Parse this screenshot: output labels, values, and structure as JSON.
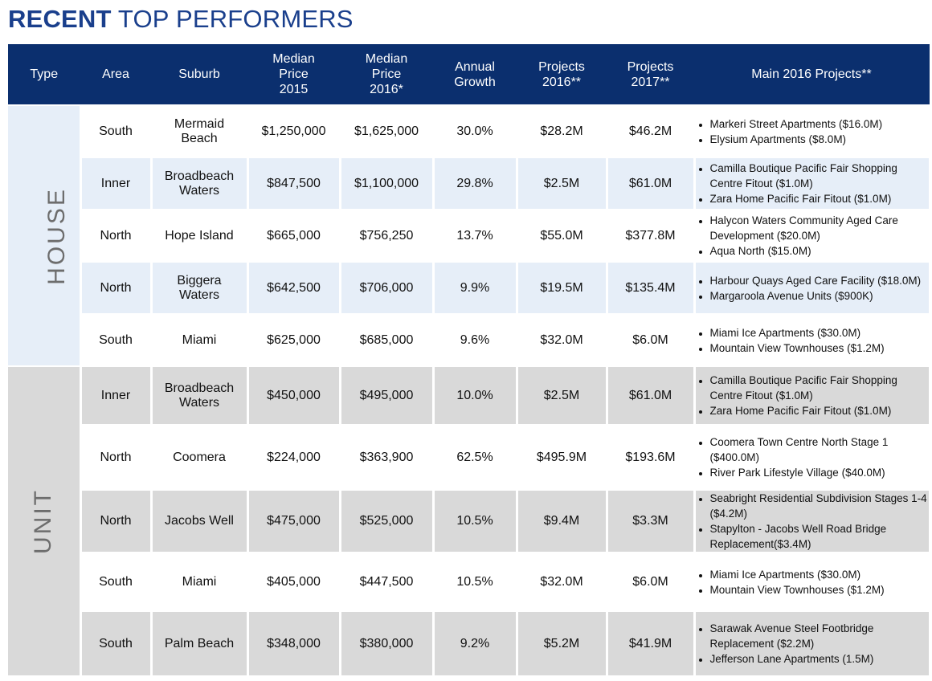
{
  "title": {
    "bold": "RECENT",
    "rest": "TOP PERFORMERS"
  },
  "headers": {
    "type": "Type",
    "area": "Area",
    "suburb": "Suburb",
    "median2015": [
      "Median",
      "Price",
      "2015"
    ],
    "median2016": [
      "Median",
      "Price",
      "2016*"
    ],
    "growth": [
      "Annual",
      "Growth"
    ],
    "proj2016": [
      "Projects",
      "2016**"
    ],
    "proj2017": [
      "Projects",
      "2017**"
    ],
    "main": "Main 2016 Projects**"
  },
  "groups": [
    {
      "type": "HOUSE",
      "rows": [
        {
          "area": "South",
          "suburb": [
            "Mermaid",
            "Beach"
          ],
          "m2015": "$1,250,000",
          "m2016": "$1,625,000",
          "growth": "30.0%",
          "p2016": "$28.2M",
          "p2017": "$46.2M",
          "projects": [
            "Markeri Street Apartments ($16.0M)",
            "Elysium Apartments ($8.0M)"
          ]
        },
        {
          "area": "Inner",
          "suburb": [
            "Broadbeach",
            "Waters"
          ],
          "m2015": "$847,500",
          "m2016": "$1,100,000",
          "growth": "29.8%",
          "p2016": "$2.5M",
          "p2017": "$61.0M",
          "projects": [
            "Camilla Boutique Pacific Fair Shopping Centre Fitout ($1.0M)",
            "Zara Home Pacific Fair Fitout ($1.0M)"
          ]
        },
        {
          "area": "North",
          "suburb": [
            "Hope Island"
          ],
          "m2015": "$665,000",
          "m2016": "$756,250",
          "growth": "13.7%",
          "p2016": "$55.0M",
          "p2017": "$377.8M",
          "projects": [
            "Halycon Waters Community Aged Care Development ($20.0M)",
            "Aqua North ($15.0M)"
          ]
        },
        {
          "area": "North",
          "suburb": [
            "Biggera",
            "Waters"
          ],
          "m2015": "$642,500",
          "m2016": "$706,000",
          "growth": "9.9%",
          "p2016": "$19.5M",
          "p2017": "$135.4M",
          "projects": [
            "Harbour Quays Aged Care Facility ($18.0M)",
            "Margaroola Avenue Units ($900K)"
          ]
        },
        {
          "area": "South",
          "suburb": [
            "Miami"
          ],
          "m2015": "$625,000",
          "m2016": "$685,000",
          "growth": "9.6%",
          "p2016": "$32.0M",
          "p2017": "$6.0M",
          "projects": [
            "Miami Ice Apartments ($30.0M)",
            "Mountain View Townhouses ($1.2M)"
          ]
        }
      ]
    },
    {
      "type": "UNIT",
      "rows": [
        {
          "area": "Inner",
          "suburb": [
            "Broadbeach",
            "Waters"
          ],
          "m2015": "$450,000",
          "m2016": "$495,000",
          "growth": "10.0%",
          "p2016": "$2.5M",
          "p2017": "$61.0M",
          "projects": [
            "Camilla Boutique Pacific Fair Shopping Centre Fitout ($1.0M)",
            "Zara Home Pacific Fair Fitout ($1.0M)"
          ]
        },
        {
          "area": "North",
          "suburb": [
            "Coomera"
          ],
          "m2015": "$224,000",
          "m2016": "$363,900",
          "growth": "62.5%",
          "p2016": "$495.9M",
          "p2017": "$193.6M",
          "projects": [
            "Coomera Town Centre North Stage 1 ($400.0M)",
            "River Park Lifestyle Village ($40.0M)"
          ]
        },
        {
          "area": "North",
          "suburb": [
            "Jacobs Well"
          ],
          "m2015": "$475,000",
          "m2016": "$525,000",
          "growth": "10.5%",
          "p2016": "$9.4M",
          "p2017": "$3.3M",
          "projects": [
            "Seabright Residential Subdivision Stages 1-4 ($4.2M)",
            "Stapylton - Jacobs Well Road Bridge Replacement($3.4M)"
          ]
        },
        {
          "area": "South",
          "suburb": [
            "Miami"
          ],
          "m2015": "$405,000",
          "m2016": "$447,500",
          "growth": "10.5%",
          "p2016": "$32.0M",
          "p2017": "$6.0M",
          "projects": [
            "Miami Ice Apartments ($30.0M)",
            "Mountain View Townhouses ($1.2M)"
          ]
        },
        {
          "area": "South",
          "suburb": [
            "Palm Beach"
          ],
          "m2015": "$348,000",
          "m2016": "$380,000",
          "growth": "9.2%",
          "p2016": "$5.2M",
          "p2017": "$41.9M",
          "projects": [
            "Sarawak Avenue Steel Footbridge Replacement ($2.2M)",
            "Jefferson Lane Apartments (1.5M)"
          ]
        }
      ]
    }
  ]
}
